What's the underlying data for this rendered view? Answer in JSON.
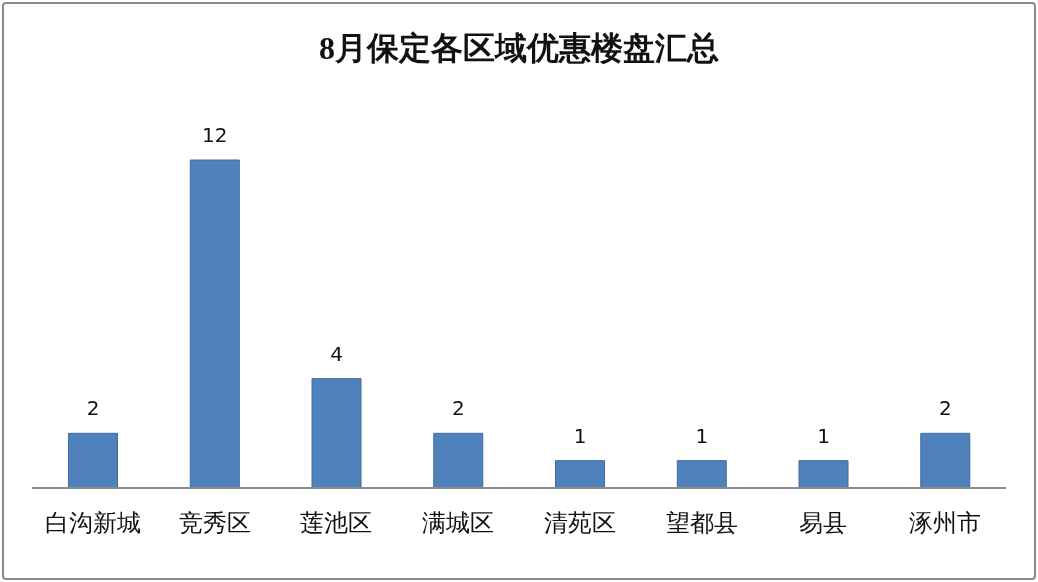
{
  "chart_data": {
    "type": "bar",
    "title": "8月保定各区域优惠楼盘汇总",
    "categories": [
      "白沟新城",
      "竞秀区",
      "莲池区",
      "满城区",
      "清苑区",
      "望都县",
      "易县",
      "涿州市"
    ],
    "values": [
      2,
      12,
      4,
      2,
      1,
      1,
      1,
      2
    ],
    "color": "#4f81bd",
    "data_labels": true,
    "tick_labels": "x"
  }
}
